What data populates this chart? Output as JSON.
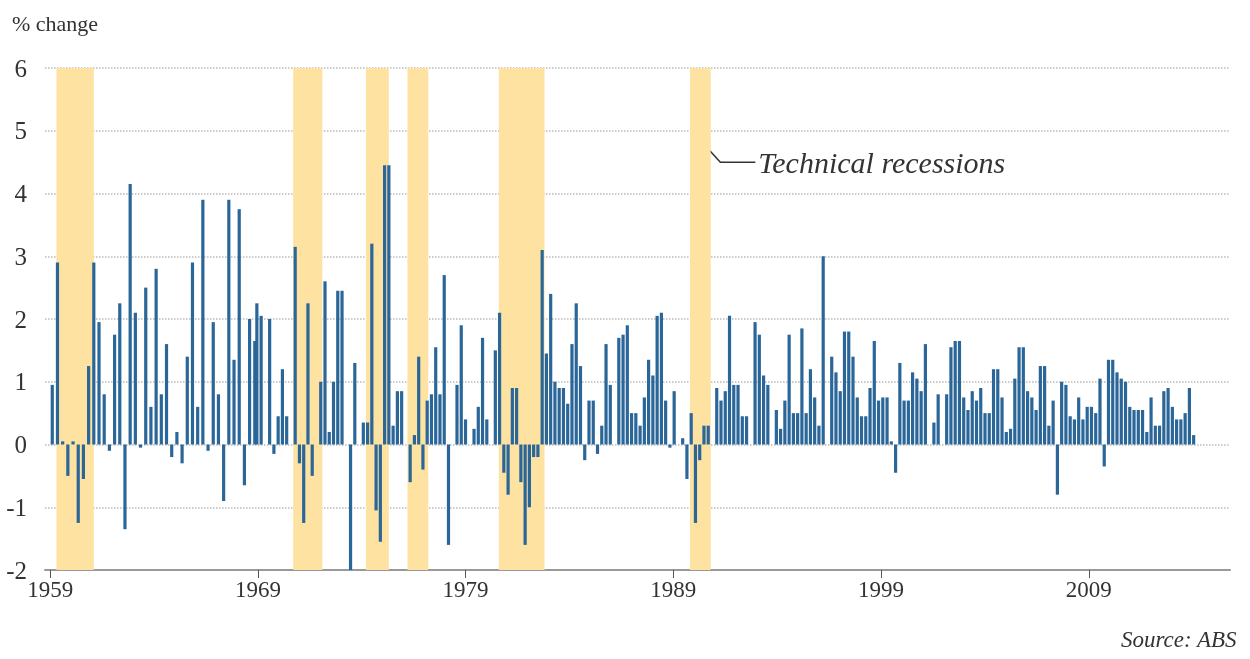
{
  "chart_data": {
    "type": "bar",
    "ylabel": "% change",
    "color": "#2b6699",
    "grid": "y",
    "xlim": [
      1958.75,
      2015.8
    ],
    "xticks": [
      1959,
      1969,
      1979,
      1989,
      1999,
      2009
    ],
    "ylim": [
      -2,
      6
    ],
    "yticks": [
      -2,
      -1,
      0,
      1,
      2,
      3,
      4,
      5,
      6
    ],
    "bands": [
      {
        "axis": "x",
        "from": 1959.3,
        "to": 1961.1,
        "color": "#fde2a1"
      },
      {
        "axis": "x",
        "from": 1970.7,
        "to": 1972.1,
        "color": "#fde2a1"
      },
      {
        "axis": "x",
        "from": 1974.2,
        "to": 1975.3,
        "color": "#fde2a1"
      },
      {
        "axis": "x",
        "from": 1976.2,
        "to": 1977.2,
        "color": "#fde2a1"
      },
      {
        "axis": "x",
        "from": 1980.6,
        "to": 1982.8,
        "color": "#fde2a1"
      },
      {
        "axis": "x",
        "from": 1989.8,
        "to": 1990.8,
        "color": "#fde2a1"
      }
    ],
    "annotations": [
      {
        "text": "Technical recessions",
        "x": 1990.3,
        "y": 4.85
      },
      "Source: ABS"
    ],
    "x": [
      1959.1,
      1959.35,
      1959.6,
      1959.85,
      1960.1,
      1960.35,
      1960.6,
      1960.85,
      1961.1,
      1961.35,
      1961.6,
      1961.85,
      1962.1,
      1962.35,
      1962.6,
      1962.85,
      1963.1,
      1963.35,
      1963.6,
      1963.85,
      1964.1,
      1964.35,
      1964.6,
      1964.85,
      1965.1,
      1965.35,
      1965.6,
      1965.85,
      1966.1,
      1966.35,
      1966.6,
      1966.85,
      1967.1,
      1967.35,
      1967.6,
      1967.85,
      1968.1,
      1968.35,
      1968.6,
      1968.85,
      1968.95,
      1969.155,
      1969.36,
      1969.565,
      1969.77,
      1969.975,
      1970.18,
      1970.385,
      1970.59,
      1970.795,
      1971,
      1971.205,
      1971.41,
      1971.615,
      1971.82,
      1972.025,
      1972.23,
      1972.435,
      1972.64,
      1972.845,
      1973.05,
      1973.255,
      1973.46,
      1973.665,
      1973.87,
      1974.075,
      1974.28,
      1974.485,
      1974.69,
      1974.895,
      1975.1,
      1975.305,
      1975.51,
      1975.715,
      1975.92,
      1976.125,
      1976.33,
      1976.535,
      1976.74,
      1976.945,
      1977.15,
      1977.355,
      1977.56,
      1977.765,
      1977.97,
      1978.175,
      1978.38,
      1978.585,
      1978.79,
      1978.995,
      1979.2,
      1979.405,
      1979.61,
      1979.815,
      1980.02,
      1980.225,
      1980.43,
      1980.635,
      1980.84,
      1981.045,
      1981.25,
      1981.455,
      1981.66,
      1981.865,
      1982.07,
      1982.275,
      1982.48,
      1982.685,
      1982.89,
      1983.095,
      1983.3,
      1983.505,
      1983.71,
      1983.915,
      1984.12,
      1984.325,
      1984.53,
      1984.735,
      1984.94,
      1985.145,
      1985.35,
      1985.555,
      1985.76,
      1985.965,
      1986.17,
      1986.375,
      1986.58,
      1986.785,
      1986.99,
      1987.195,
      1987.4,
      1987.605,
      1987.81,
      1988.015,
      1988.22,
      1988.425,
      1988.63,
      1988.835,
      1989.04,
      1989.245,
      1989.45,
      1989.655,
      1989.86,
      1990.065,
      1990.27,
      1990.475,
      1990.68,
      1990.885,
      1991.09,
      1991.295,
      1991.5,
      1991.705,
      1991.91,
      1992.115,
      1992.32,
      1992.525,
      1992.73,
      1992.935,
      1993.14,
      1993.345,
      1993.55,
      1993.755,
      1993.96,
      1994.165,
      1994.37,
      1994.575,
      1994.78,
      1994.985,
      1995.19,
      1995.395,
      1995.6,
      1995.805,
      1996.01,
      1996.215,
      1996.42,
      1996.625,
      1996.83,
      1997.035,
      1997.24,
      1997.445,
      1997.65,
      1997.855,
      1998.06,
      1998.265,
      1998.47,
      1998.675,
      1998.88,
      1999.085,
      1999.29,
      1999.495,
      1999.7,
      1999.905,
      2000.11,
      2000.315,
      2000.52,
      2000.725,
      2000.93,
      2001.135,
      2001.34,
      2001.545,
      2001.75,
      2001.955,
      2002.16,
      2002.365,
      2002.57,
      2002.775,
      2002.98,
      2003.185,
      2003.39,
      2003.595,
      2003.8,
      2004.005,
      2004.21,
      2004.415,
      2004.62,
      2004.825,
      2005.03,
      2005.235,
      2005.44,
      2005.645,
      2005.85,
      2006.055,
      2006.26,
      2006.465,
      2006.67,
      2006.875,
      2007.08,
      2007.285,
      2007.49,
      2007.695,
      2007.9,
      2008.105,
      2008.31,
      2008.515,
      2008.72,
      2008.925,
      2009.13,
      2009.335,
      2009.54,
      2009.745,
      2009.95,
      2010.155,
      2010.36,
      2010.565,
      2010.77,
      2010.975,
      2011.18,
      2011.385,
      2011.59,
      2011.795,
      2012,
      2012.205,
      2012.41,
      2012.615,
      2012.82,
      2013.025,
      2013.23,
      2013.435,
      2013.64,
      2013.845,
      2014.05
    ],
    "values": [
      0.95,
      2.9,
      0.05,
      -0.5,
      0.05,
      -1.25,
      -0.55,
      1.25,
      2.9,
      1.95,
      0.8,
      -0.1,
      1.75,
      2.25,
      -1.35,
      4.15,
      2.1,
      -0.05,
      2.5,
      0.6,
      2.8,
      0.8,
      1.6,
      -0.2,
      0.2,
      -0.3,
      1.4,
      2.9,
      0.6,
      3.9,
      -0.1,
      1.95,
      0.8,
      -0.9,
      3.9,
      1.35,
      3.75,
      -0.65,
      2.0,
      1.65,
      2.25,
      2.05,
      0.0,
      2.0,
      -0.15,
      0.45,
      1.2,
      0.45,
      0.0,
      3.15,
      -0.3,
      -1.25,
      2.25,
      -0.5,
      0.0,
      1.0,
      2.6,
      0.2,
      1.0,
      2.45,
      2.45,
      0.0,
      -2.0,
      1.3,
      0.0,
      0.35,
      0.35,
      3.2,
      -1.05,
      -1.55,
      4.45,
      4.45,
      0.3,
      0.85,
      0.85,
      0.0,
      -0.6,
      0.15,
      1.4,
      -0.4,
      0.7,
      0.8,
      1.55,
      0.8,
      2.7,
      -1.6,
      0.0,
      0.95,
      1.9,
      0.4,
      0.0,
      0.25,
      0.6,
      1.7,
      0.4,
      0.0,
      1.5,
      2.1,
      -0.45,
      -0.8,
      0.9,
      0.9,
      -0.6,
      -1.6,
      -1.0,
      -0.2,
      -0.2,
      3.1,
      1.45,
      2.4,
      1.0,
      0.9,
      0.9,
      0.65,
      1.6,
      2.25,
      1.25,
      -0.25,
      0.7,
      0.7,
      -0.15,
      0.3,
      1.6,
      0.95,
      0.0,
      1.7,
      1.75,
      1.9,
      0.5,
      0.5,
      0.3,
      0.75,
      1.35,
      1.1,
      2.05,
      2.1,
      0.7,
      -0.05,
      0.85,
      0.0,
      0.1,
      -0.55,
      0.5,
      -1.25,
      -0.25,
      0.3,
      0.3,
      0.0,
      0.9,
      0.7,
      0.85,
      2.05,
      0.95,
      0.95,
      0.45,
      0.45,
      0.0,
      1.95,
      1.75,
      1.1,
      0.95,
      0.0,
      0.55,
      0.25,
      0.7,
      1.75,
      0.5,
      0.5,
      1.85,
      0.5,
      1.2,
      0.75,
      0.3,
      3.0,
      0.0,
      1.4,
      1.15,
      0.85,
      1.8,
      1.8,
      1.4,
      0.75,
      0.45,
      0.45,
      0.9,
      1.65,
      0.7,
      0.75,
      0.75,
      0.05,
      -0.45,
      1.3,
      0.7,
      0.7,
      1.15,
      1.05,
      0.85,
      1.6,
      0.0,
      0.35,
      0.8,
      0.0,
      0.8,
      1.55,
      1.65,
      1.65,
      0.75,
      0.55,
      0.85,
      0.7,
      0.9,
      0.5,
      0.5,
      1.2,
      1.2,
      0.75,
      0.2,
      0.25,
      1.05,
      1.55,
      1.55,
      0.85,
      0.75,
      0.55,
      1.25,
      1.25,
      0.3,
      0.7,
      -0.8,
      1.0,
      0.95,
      0.45,
      0.4,
      0.75,
      0.4,
      0.6,
      0.6,
      0.5,
      1.05,
      -0.35,
      1.35,
      1.35,
      1.15,
      1.05,
      1.0,
      0.6,
      0.55,
      0.55,
      0.55,
      0.2,
      0.75,
      0.3,
      0.3,
      0.85,
      0.9,
      0.6,
      0.4,
      0.4,
      0.5,
      0.9,
      0.15
    ]
  }
}
